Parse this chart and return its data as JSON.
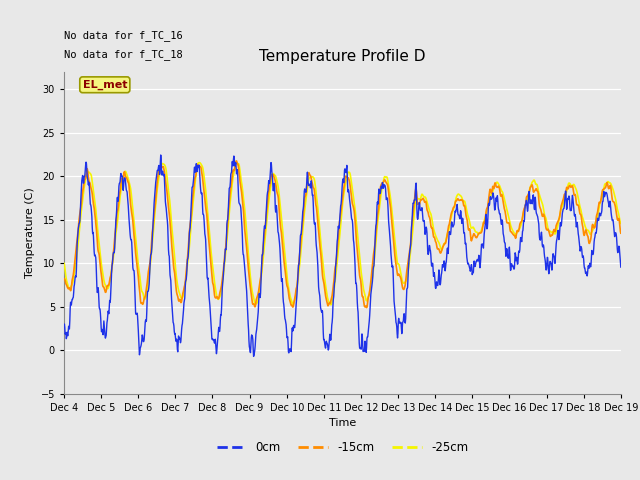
{
  "title": "Temperature Profile D",
  "xlabel": "Time",
  "ylabel": "Temperature (C)",
  "ylim": [
    -5,
    32
  ],
  "yticks": [
    -5,
    0,
    5,
    10,
    15,
    20,
    25,
    30
  ],
  "fig_bg_color": "#e8e8e8",
  "plot_bg_color": "#e8e8e8",
  "line_colors": {
    "0cm": "#1e32e8",
    "-15cm": "#ff8c00",
    "-25cm": "#f5f500"
  },
  "line_widths": {
    "0cm": 1.0,
    "-15cm": 1.2,
    "-25cm": 1.2
  },
  "annotation_text1": "No data for f_TC_16",
  "annotation_text2": "No data for f_TC_18",
  "el_met_text": "EL_met",
  "x_tick_labels": [
    "Dec 4",
    "Dec 5",
    "Dec 6",
    "Dec 7",
    "Dec 8",
    "Dec 9",
    "Dec 10",
    "Dec 11",
    "Dec 12",
    "Dec 13",
    "Dec 14",
    "Dec 15",
    "Dec 16",
    "Dec 17",
    "Dec 18",
    "Dec 19"
  ],
  "num_days": 15,
  "ppd": 96
}
